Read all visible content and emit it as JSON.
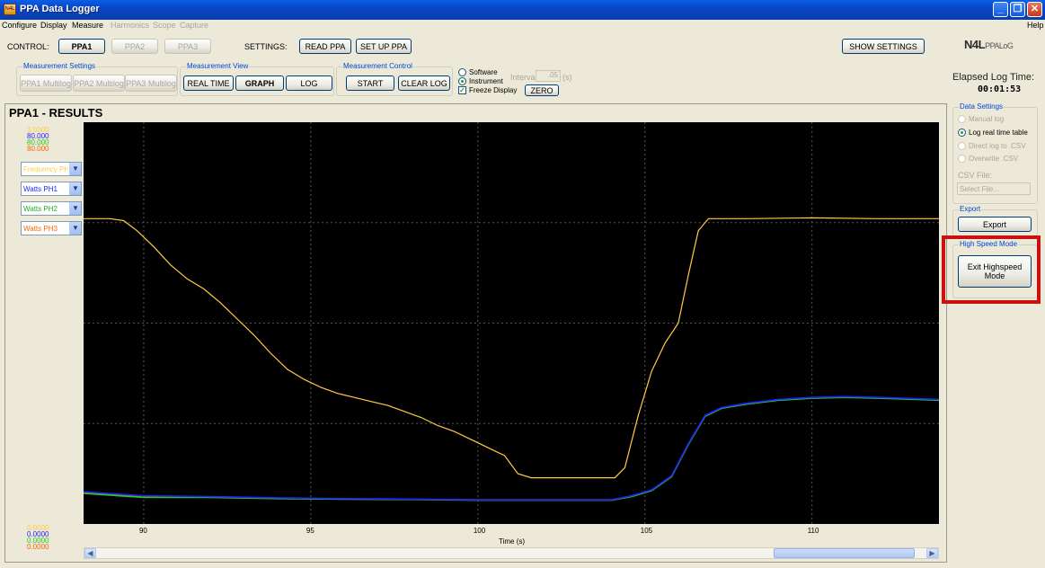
{
  "window": {
    "title": "PPA Data Logger",
    "icon": "app-icon",
    "controls": [
      "minimize-icon",
      "restore-icon",
      "close-icon"
    ]
  },
  "menu": {
    "items": [
      {
        "label": "Configure",
        "enabled": true
      },
      {
        "label": "Display",
        "enabled": true
      },
      {
        "label": "Measure",
        "enabled": true
      },
      {
        "label": "Harmonics",
        "enabled": false
      },
      {
        "label": "Scope",
        "enabled": false
      },
      {
        "label": "Capture",
        "enabled": false
      }
    ],
    "help": "Help"
  },
  "control": {
    "label": "CONTROL:",
    "ppa1": "PPA1",
    "ppa2": "PPA2",
    "ppa3": "PPA3",
    "settings_label": "SETTINGS:",
    "read_ppa": "READ PPA",
    "set_up_ppa": "SET UP PPA",
    "show_settings": "SHOW SETTINGS"
  },
  "logo": {
    "brand": "N4L",
    "product": "PPALoG"
  },
  "measurement_settings": {
    "title": "Measurement Settings",
    "ppa1": "PPA1 Multilog",
    "ppa2": "PPA2 Multilog",
    "ppa3": "PPA3 Multilog"
  },
  "measurement_view": {
    "title": "Measurement View",
    "real_time": "REAL TIME",
    "graph": "GRAPH",
    "log": "LOG"
  },
  "measurement_control": {
    "title": "Measurement Control",
    "start": "START",
    "clear_log": "CLEAR LOG",
    "software": "Software",
    "instrument": "Instrument",
    "instrument_selected": true,
    "freeze_display": "Freeze Display",
    "freeze_checked": true,
    "interval_label": "Interval",
    "interval_value": ".05",
    "interval_unit": "(s)",
    "zero": "ZERO"
  },
  "elapsed": {
    "label": "Elapsed Log Time:",
    "value": "00:01:53"
  },
  "results": {
    "title": "PPA1 - RESULTS",
    "scale_top": [
      "3.0000",
      "80.000",
      "80.000",
      "80.000"
    ],
    "scale_bottom": [
      "0.0000",
      "0.0000",
      "0.0000",
      "0.0000"
    ],
    "channels": [
      {
        "label": "Frequency PH1",
        "color": "#ffcc44"
      },
      {
        "label": "Watts PH1",
        "color": "#2222ff"
      },
      {
        "label": "Watts PH2",
        "color": "#22cc22"
      },
      {
        "label": "Watts PH3",
        "color": "#ff6600"
      }
    ]
  },
  "data_settings": {
    "title": "Data Settings",
    "manual_log": "Manual log",
    "log_real_time_table": "Log real time table",
    "direct_log_csv": "Direct log to .CSV",
    "overwrite_csv": "Overwrite .CSV",
    "selected": "log_real_time_table",
    "csv_file_label": "CSV File:",
    "csv_file_placeholder": "Select File..."
  },
  "export": {
    "title": "Export",
    "button": "Export"
  },
  "high_speed": {
    "title": "High Speed Mode",
    "button_line1": "Exit Highspeed",
    "button_line2": "Mode"
  },
  "chart_data": {
    "type": "line",
    "xlabel": "Time (s)",
    "xlim": [
      88.2,
      113.8
    ],
    "xticks": [
      90,
      95,
      100,
      105,
      110
    ],
    "ylim": [
      0,
      1
    ],
    "grid": true,
    "background": "#000000",
    "series": [
      {
        "name": "Frequency PH1",
        "color": "#ffcc44",
        "points": [
          [
            88.2,
            0.76
          ],
          [
            89.0,
            0.76
          ],
          [
            89.4,
            0.755
          ],
          [
            89.8,
            0.73
          ],
          [
            90.3,
            0.69
          ],
          [
            90.8,
            0.645
          ],
          [
            91.3,
            0.61
          ],
          [
            91.8,
            0.585
          ],
          [
            92.3,
            0.55
          ],
          [
            92.8,
            0.51
          ],
          [
            93.3,
            0.47
          ],
          [
            93.8,
            0.425
          ],
          [
            94.3,
            0.385
          ],
          [
            94.8,
            0.36
          ],
          [
            95.3,
            0.34
          ],
          [
            95.8,
            0.325
          ],
          [
            96.3,
            0.315
          ],
          [
            96.8,
            0.305
          ],
          [
            97.3,
            0.295
          ],
          [
            97.8,
            0.28
          ],
          [
            98.3,
            0.265
          ],
          [
            98.8,
            0.245
          ],
          [
            99.3,
            0.23
          ],
          [
            99.8,
            0.21
          ],
          [
            100.3,
            0.19
          ],
          [
            100.8,
            0.17
          ],
          [
            101.2,
            0.125
          ],
          [
            101.6,
            0.115
          ],
          [
            102.5,
            0.115
          ],
          [
            103.3,
            0.115
          ],
          [
            104.1,
            0.115
          ],
          [
            104.4,
            0.14
          ],
          [
            104.8,
            0.27
          ],
          [
            105.2,
            0.38
          ],
          [
            105.6,
            0.45
          ],
          [
            106.0,
            0.5
          ],
          [
            106.3,
            0.62
          ],
          [
            106.6,
            0.73
          ],
          [
            106.9,
            0.76
          ],
          [
            108.0,
            0.76
          ],
          [
            110.0,
            0.762
          ],
          [
            112.0,
            0.76
          ],
          [
            113.8,
            0.76
          ]
        ]
      },
      {
        "name": "Watts PH1",
        "color": "#2222ff",
        "points": [
          [
            88.2,
            0.08
          ],
          [
            90.0,
            0.07
          ],
          [
            92.0,
            0.068
          ],
          [
            94.0,
            0.065
          ],
          [
            96.0,
            0.063
          ],
          [
            98.0,
            0.062
          ],
          [
            100.0,
            0.06
          ],
          [
            102.0,
            0.06
          ],
          [
            104.0,
            0.06
          ],
          [
            104.6,
            0.07
          ],
          [
            105.2,
            0.085
          ],
          [
            105.8,
            0.12
          ],
          [
            106.3,
            0.2
          ],
          [
            106.8,
            0.27
          ],
          [
            107.3,
            0.29
          ],
          [
            108.0,
            0.3
          ],
          [
            109.0,
            0.31
          ],
          [
            110.0,
            0.315
          ],
          [
            111.0,
            0.317
          ],
          [
            112.0,
            0.315
          ],
          [
            113.8,
            0.31
          ]
        ]
      },
      {
        "name": "Watts PH2",
        "color": "#22cc22",
        "points": [
          [
            88.2,
            0.076
          ],
          [
            90.0,
            0.066
          ],
          [
            92.0,
            0.066
          ],
          [
            94.0,
            0.063
          ],
          [
            96.0,
            0.062
          ],
          [
            98.0,
            0.061
          ],
          [
            100.0,
            0.059
          ],
          [
            102.0,
            0.059
          ],
          [
            104.0,
            0.059
          ],
          [
            104.6,
            0.068
          ],
          [
            105.2,
            0.083
          ],
          [
            105.8,
            0.118
          ],
          [
            106.3,
            0.198
          ],
          [
            106.8,
            0.268
          ],
          [
            107.3,
            0.288
          ],
          [
            108.0,
            0.298
          ],
          [
            109.0,
            0.308
          ],
          [
            110.0,
            0.313
          ],
          [
            111.0,
            0.315
          ],
          [
            112.0,
            0.313
          ],
          [
            113.8,
            0.308
          ]
        ]
      },
      {
        "name": "Watts PH3",
        "color": "#ff6600",
        "points": [
          [
            88.2,
            0.078
          ],
          [
            90.0,
            0.068
          ],
          [
            92.0,
            0.067
          ],
          [
            94.0,
            0.064
          ],
          [
            96.0,
            0.062
          ],
          [
            98.0,
            0.061
          ],
          [
            100.0,
            0.06
          ],
          [
            102.0,
            0.06
          ],
          [
            104.0,
            0.06
          ],
          [
            104.6,
            0.069
          ],
          [
            105.2,
            0.084
          ],
          [
            105.8,
            0.119
          ],
          [
            106.3,
            0.199
          ],
          [
            106.8,
            0.269
          ],
          [
            107.3,
            0.289
          ],
          [
            108.0,
            0.299
          ],
          [
            109.0,
            0.309
          ],
          [
            110.0,
            0.314
          ],
          [
            111.0,
            0.316
          ],
          [
            112.0,
            0.314
          ],
          [
            113.8,
            0.309
          ]
        ]
      }
    ]
  }
}
